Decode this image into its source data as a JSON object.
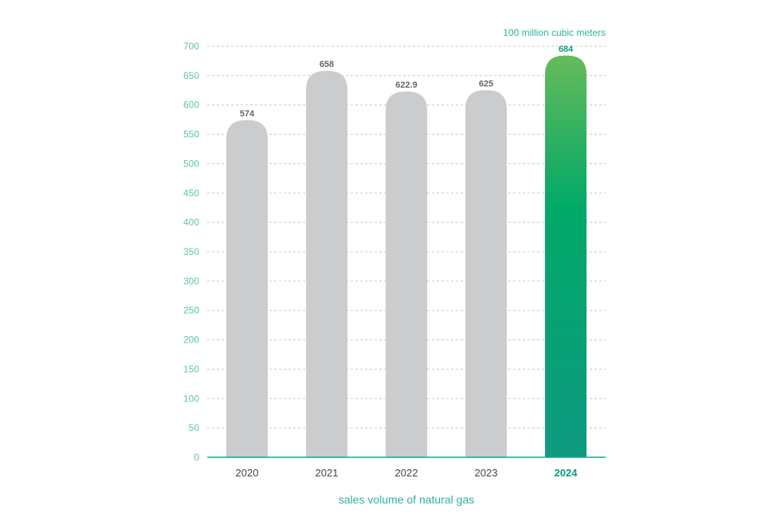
{
  "chart_data": {
    "type": "bar",
    "title": "",
    "unit": "100 million cubic meters",
    "xlabel": "sales volume of natural gas",
    "ylabel": "",
    "ylim": [
      0,
      700
    ],
    "yticks": [
      0,
      50,
      100,
      150,
      200,
      250,
      300,
      350,
      400,
      450,
      500,
      550,
      600,
      650,
      700
    ],
    "grid": true,
    "categories": [
      "2020",
      "2021",
      "2022",
      "2023",
      "2024"
    ],
    "values": [
      574,
      658,
      622.9,
      625,
      684
    ],
    "value_labels": [
      "574",
      "658",
      "622.9",
      "625",
      "684"
    ],
    "highlight": "2024"
  },
  "colors": {
    "bar": "#cbcccd",
    "highlight_top": "#66bb5a",
    "highlight_mid": "#00a968",
    "highlight_bottom": "#0f9a82",
    "axis": "#1aa58c",
    "tick_text": "#5cc5b0",
    "grid": "#c8c8c8",
    "value_text": "#666666",
    "category_text": "#444444",
    "highlight_text": "#119a7e",
    "xlabel_text": "#2eb39c",
    "unit_text": "#2eb39c"
  }
}
